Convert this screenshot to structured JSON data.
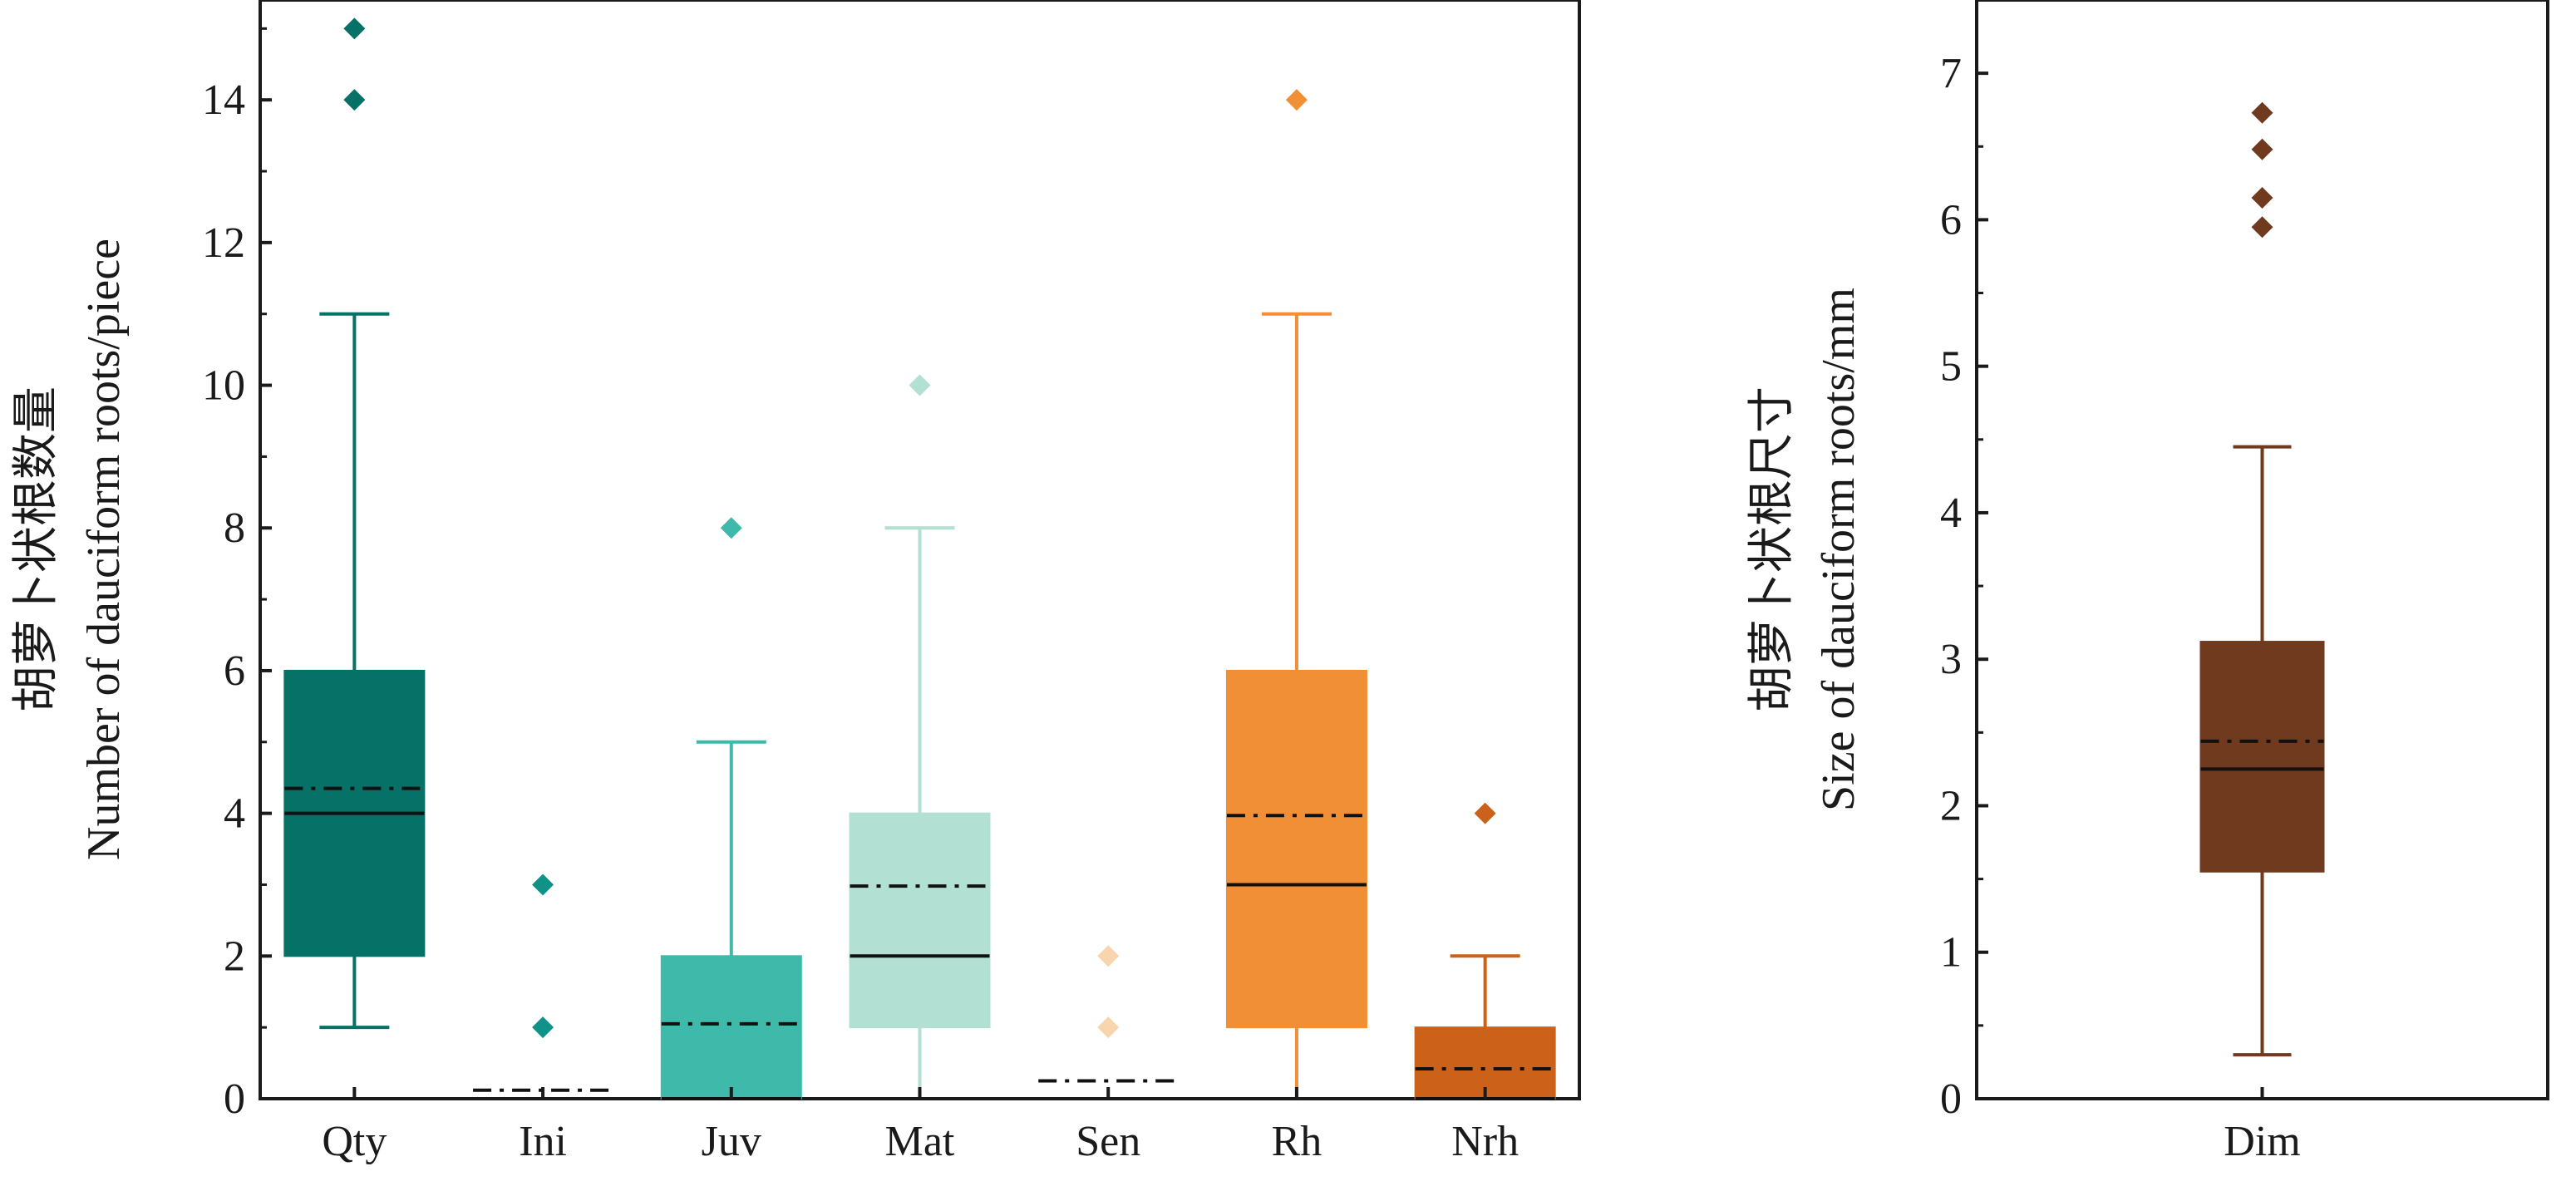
{
  "chart_data": [
    {
      "type": "box",
      "ylabel_cn": "胡萝卜状根数量",
      "ylabel_en": "Number of dauciform roots/piece",
      "ylim": [
        0,
        15.4
      ],
      "yticks": [
        0,
        2,
        4,
        6,
        8,
        10,
        12,
        14
      ],
      "grid": false,
      "legend": "none",
      "mean_line": "dash-dot",
      "median_line": "solid",
      "categories": [
        "Qty",
        "Ini",
        "Juv",
        "Mat",
        "Sen",
        "Rh",
        "Nrh"
      ],
      "boxes": [
        {
          "label": "Qty",
          "color": "#067166",
          "whisker_low": 1,
          "q1": 2,
          "median": 4,
          "q3": 6,
          "whisker_high": 11,
          "mean": 4.35,
          "outliers": [
            14,
            15
          ]
        },
        {
          "label": "Ini",
          "color": "#0f9287",
          "whisker_low": 0,
          "q1": 0,
          "median": 0,
          "q3": 0,
          "whisker_high": 0,
          "mean": 0.12,
          "outliers": [
            1,
            3
          ]
        },
        {
          "label": "Juv",
          "color": "#3fb9aa",
          "whisker_low": 0,
          "q1": 0,
          "median": 0,
          "q3": 2,
          "whisker_high": 5,
          "mean": 1.05,
          "outliers": [
            8
          ]
        },
        {
          "label": "Mat",
          "color": "#b2e0d3",
          "whisker_low": 0,
          "q1": 1,
          "median": 2,
          "q3": 4,
          "whisker_high": 8,
          "mean": 2.98,
          "outliers": [
            10
          ]
        },
        {
          "label": "Sen",
          "color": "#f9d5ae",
          "whisker_low": 0,
          "q1": 0,
          "median": 0,
          "q3": 0,
          "whisker_high": 0,
          "mean": 0.25,
          "outliers": [
            1,
            2
          ]
        },
        {
          "label": "Rh",
          "color": "#f08f35",
          "whisker_low": 0,
          "q1": 1,
          "median": 3,
          "q3": 6,
          "whisker_high": 11,
          "mean": 3.97,
          "outliers": [
            14
          ]
        },
        {
          "label": "Nrh",
          "color": "#cc6219",
          "whisker_low": 0,
          "q1": 0,
          "median": 0,
          "q3": 1,
          "whisker_high": 2,
          "mean": 0.42,
          "outliers": [
            4
          ]
        }
      ]
    },
    {
      "type": "box",
      "ylabel_cn": "胡萝卜状根尺寸",
      "ylabel_en": "Size of dauciform roots/mm",
      "ylim": [
        0,
        7.5
      ],
      "yticks": [
        0,
        1,
        2,
        3,
        4,
        5,
        6,
        7
      ],
      "grid": false,
      "legend": "none",
      "mean_line": "dash-dot",
      "median_line": "solid",
      "categories": [
        "Dim"
      ],
      "boxes": [
        {
          "label": "Dim",
          "color": "#6f3a1e",
          "whisker_low": 0.3,
          "q1": 1.55,
          "median": 2.25,
          "q3": 3.12,
          "whisker_high": 4.45,
          "mean": 2.44,
          "outliers": [
            5.95,
            6.15,
            6.48,
            6.73
          ]
        }
      ]
    }
  ]
}
